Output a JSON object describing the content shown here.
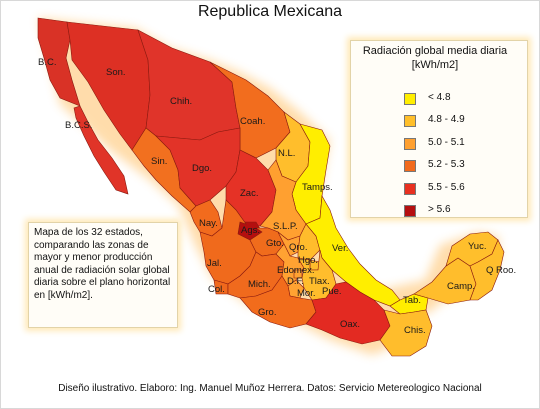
{
  "map": {
    "title": "Republica Mexicana",
    "legend": {
      "title": "Radiación global media diaria [kWh/m2]",
      "items": [
        {
          "label": "< 4.8",
          "color": "#ffee00"
        },
        {
          "label": "4.8 - 4.9",
          "color": "#ffbf2a"
        },
        {
          "label": "5.0 - 5.1",
          "color": "#ffa030"
        },
        {
          "label": "5.2 - 5.3",
          "color": "#f26a1c"
        },
        {
          "label": "5.5 - 5.6",
          "color": "#e83020"
        },
        {
          "label": "> 5.6",
          "color": "#b50f0f"
        }
      ]
    },
    "note": "Mapa de los 32 estados, comparando las zonas de mayor y menor producción anual de radiación solar global diaria sobre el plano horizontal en [kWh/m2].",
    "credit": "Diseño ilustrativo. Elaboro: Ing. Manuel Muñoz Herrera. Datos: Servicio Metereologico Nacional",
    "states": [
      {
        "label": "B.C.",
        "class": "5.5 - 5.6"
      },
      {
        "label": "B.C.S.",
        "class": "5.5 - 5.6"
      },
      {
        "label": "Son.",
        "class": "5.5 - 5.6"
      },
      {
        "label": "Chih.",
        "class": "5.5 - 5.6"
      },
      {
        "label": "Coah.",
        "class": "5.2 - 5.3"
      },
      {
        "label": "N.L.",
        "class": "4.8 - 4.9"
      },
      {
        "label": "Tamps.",
        "class": "< 4.8"
      },
      {
        "label": "Sin.",
        "class": "5.2 - 5.3"
      },
      {
        "label": "Dgo.",
        "class": "5.5 - 5.6"
      },
      {
        "label": "Zac.",
        "class": "5.5 - 5.6"
      },
      {
        "label": "Nay.",
        "class": "5.2 - 5.3"
      },
      {
        "label": "Ags.",
        "class": "> 5.6"
      },
      {
        "label": "S.L.P.",
        "class": "5.0 - 5.1"
      },
      {
        "label": "Gto.",
        "class": "5.2 - 5.3"
      },
      {
        "label": "Qro.",
        "class": "5.0 - 5.1"
      },
      {
        "label": "Hgo.",
        "class": "4.8 - 4.9"
      },
      {
        "label": "Ver.",
        "class": "< 4.8"
      },
      {
        "label": "Jal.",
        "class": "5.2 - 5.3"
      },
      {
        "label": "Col.",
        "class": "5.2 - 5.3"
      },
      {
        "label": "Mich.",
        "class": "5.2 - 5.3"
      },
      {
        "label": "Edomex.",
        "class": "5.0 - 5.1"
      },
      {
        "label": "D.F.",
        "class": "5.0 - 5.1"
      },
      {
        "label": "Mor.",
        "class": "5.0 - 5.1"
      },
      {
        "label": "Tlax.",
        "class": "4.8 - 4.9"
      },
      {
        "label": "Pue.",
        "class": "4.8 - 4.9"
      },
      {
        "label": "Gro.",
        "class": "5.2 - 5.3"
      },
      {
        "label": "Oax.",
        "class": "5.5 - 5.6"
      },
      {
        "label": "Tab.",
        "class": "< 4.8"
      },
      {
        "label": "Chis.",
        "class": "4.8 - 4.9"
      },
      {
        "label": "Camp.",
        "class": "4.8 - 4.9"
      },
      {
        "label": "Yuc.",
        "class": "4.8 - 4.9"
      },
      {
        "label": "Q Roo.",
        "class": "4.8 - 4.9"
      }
    ]
  }
}
